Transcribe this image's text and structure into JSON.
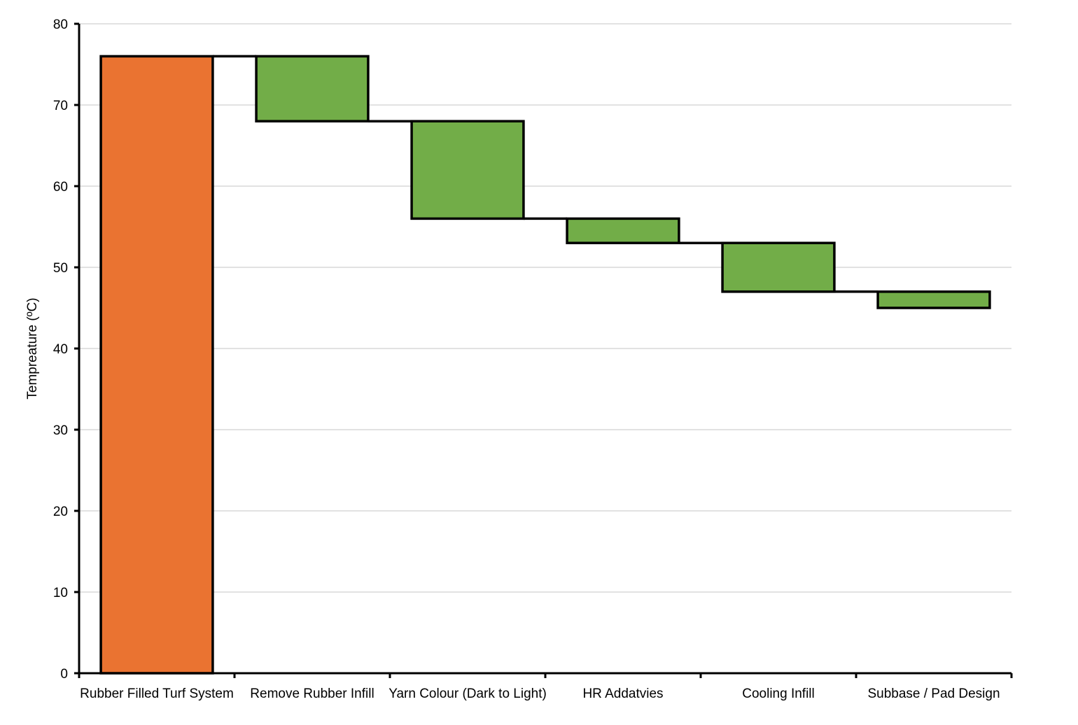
{
  "chart_data": {
    "type": "bar",
    "subtype": "waterfall",
    "title": "",
    "xlabel": "",
    "ylabel": "Tempreature (ºC)",
    "ylim": [
      0,
      80
    ],
    "yticks": [
      0,
      10,
      20,
      30,
      40,
      50,
      60,
      70,
      80
    ],
    "grid": true,
    "legend": "none",
    "categories": [
      "Rubber Filled Turf System",
      "Remove Rubber Infill",
      "Yarn Colour (Dark to Light)",
      "HR Addatvies",
      "Cooling Infill",
      "Subbase / Pad Design"
    ],
    "bars": [
      {
        "category": "Rubber Filled Turf System",
        "start": 0,
        "end": 76,
        "kind": "total"
      },
      {
        "category": "Remove Rubber Infill",
        "start": 76,
        "end": 68,
        "kind": "decrease"
      },
      {
        "category": "Yarn Colour (Dark to Light)",
        "start": 68,
        "end": 56,
        "kind": "decrease"
      },
      {
        "category": "HR Addatvies",
        "start": 56,
        "end": 53,
        "kind": "decrease"
      },
      {
        "category": "Cooling Infill",
        "start": 53,
        "end": 47,
        "kind": "decrease"
      },
      {
        "category": "Subbase / Pad Design",
        "start": 47,
        "end": 45,
        "kind": "decrease"
      }
    ],
    "colors": {
      "total": "#ea7331",
      "decrease": "#72ad48",
      "outline": "#000000",
      "grid": "#d9d9d9"
    }
  }
}
